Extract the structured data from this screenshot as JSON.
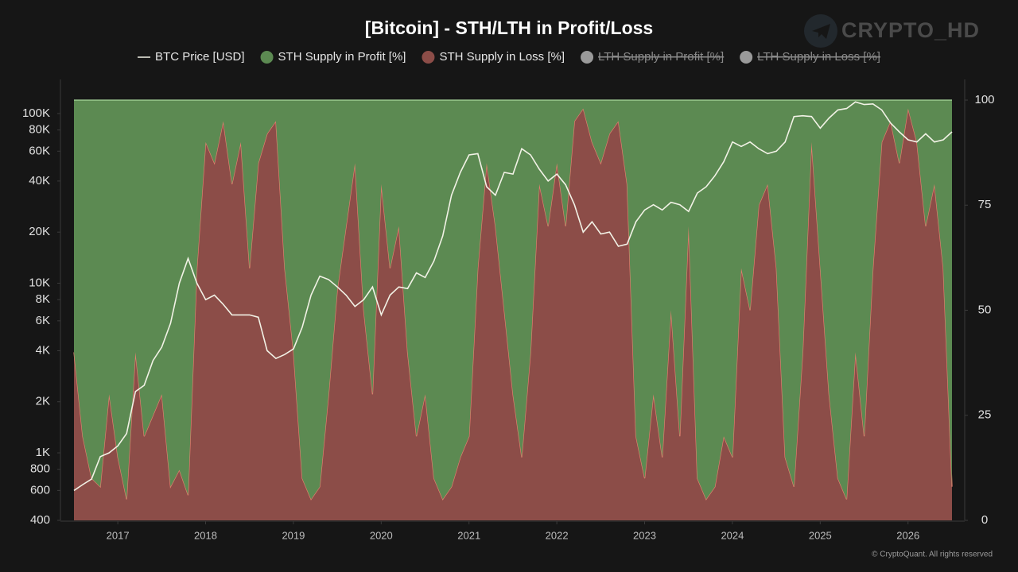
{
  "chart_data": {
    "type": "combo",
    "title": "[Bitcoin] - STH/LTH in Profit/Loss",
    "watermark": "CRYPTO_HD",
    "credit": "© CryptoQuant. All rights reserved",
    "x": [
      2016.7,
      2016.8,
      2016.9,
      2017.0,
      2017.1,
      2017.2,
      2017.3,
      2017.4,
      2017.5,
      2017.6,
      2017.7,
      2017.8,
      2017.9,
      2018.0,
      2018.1,
      2018.2,
      2018.3,
      2018.4,
      2018.5,
      2018.6,
      2018.7,
      2018.8,
      2018.9,
      2019.0,
      2019.1,
      2019.2,
      2019.3,
      2019.4,
      2019.5,
      2019.6,
      2019.7,
      2019.8,
      2019.9,
      2020.0,
      2020.1,
      2020.2,
      2020.3,
      2020.4,
      2020.5,
      2020.6,
      2020.7,
      2020.8,
      2020.9,
      2021.0,
      2021.1,
      2021.2,
      2021.3,
      2021.4,
      2021.5,
      2021.6,
      2021.7,
      2021.8,
      2021.9,
      2022.0,
      2022.1,
      2022.2,
      2022.3,
      2022.4,
      2022.5,
      2022.6,
      2022.7,
      2022.8,
      2022.9,
      2023.0,
      2023.1,
      2023.2,
      2023.3,
      2023.4,
      2023.5,
      2023.6,
      2023.7,
      2023.8,
      2023.9,
      2024.0,
      2024.1,
      2024.2,
      2024.3,
      2024.4,
      2024.5,
      2024.6,
      2024.7,
      2024.8,
      2024.9,
      2025.0,
      2025.1,
      2025.2,
      2025.3,
      2025.4,
      2025.5,
      2025.6,
      2025.7,
      2025.8,
      2025.9,
      2026.0,
      2026.1,
      2026.2,
      2026.3,
      2026.4,
      2026.5,
      2026.6,
      2026.7
    ],
    "xlim": [
      2016.7,
      2026.7
    ],
    "xticks": [
      2017,
      2018,
      2019,
      2020,
      2021,
      2022,
      2023,
      2024,
      2025,
      2026
    ],
    "ylim": [
      400,
      120000
    ],
    "yscale": "log",
    "yticks": [
      400,
      600,
      800,
      {
        "value": 1000,
        "label": "1K"
      },
      {
        "value": 2000,
        "label": "2K"
      },
      {
        "value": 4000,
        "label": "4K"
      },
      {
        "value": 6000,
        "label": "6K"
      },
      {
        "value": 8000,
        "label": "8K"
      },
      {
        "value": 10000,
        "label": "10K"
      },
      {
        "value": 20000,
        "label": "20K"
      },
      {
        "value": 40000,
        "label": "40K"
      },
      {
        "value": 60000,
        "label": "60K"
      },
      {
        "value": 80000,
        "label": "80K"
      },
      {
        "value": 100000,
        "label": "100K"
      }
    ],
    "y2lim": [
      0,
      100
    ],
    "y2ticks": [
      0,
      25,
      50,
      75,
      100
    ],
    "stacked": true,
    "series": [
      {
        "name": "BTC Price [USD]",
        "type": "line",
        "color": "#f2f2e6",
        "values": [
          600,
          650,
          700,
          950,
          1000,
          1100,
          1300,
          2300,
          2500,
          3500,
          4200,
          5800,
          10000,
          14000,
          10000,
          8000,
          8500,
          7500,
          6500,
          6500,
          6500,
          6300,
          4000,
          3600,
          3800,
          4100,
          5500,
          8500,
          11000,
          10500,
          9500,
          8500,
          7300,
          8000,
          9500,
          6500,
          8500,
          9500,
          9300,
          11500,
          10800,
          13500,
          19000,
          33000,
          45000,
          57000,
          58000,
          37000,
          33000,
          45000,
          44000,
          62000,
          57000,
          47000,
          40000,
          44000,
          38000,
          29000,
          20000,
          23000,
          19500,
          20000,
          16500,
          17000,
          23000,
          27000,
          29000,
          27000,
          30000,
          29000,
          26500,
          34000,
          37000,
          43000,
          52000,
          68000,
          64000,
          68000,
          62000,
          58000,
          60000,
          68000,
          96000,
          97000,
          96000,
          82000,
          94000,
          105000,
          107000,
          117000,
          113000,
          114000,
          105000,
          88000,
          78000,
          70000,
          68000,
          76000,
          68000,
          70000,
          78000
        ]
      },
      {
        "name": "STH Supply in Profit [%]",
        "type": "area",
        "axis": "y2",
        "color": "#5c8a52",
        "line_color": "#a9d99d",
        "values": [
          60,
          80,
          90,
          92,
          70,
          85,
          95,
          60,
          80,
          75,
          70,
          92,
          88,
          94,
          40,
          10,
          15,
          5,
          20,
          10,
          40,
          15,
          8,
          5,
          40,
          60,
          90,
          95,
          92,
          70,
          45,
          30,
          15,
          50,
          70,
          20,
          40,
          30,
          60,
          80,
          70,
          90,
          95,
          92,
          85,
          80,
          40,
          15,
          30,
          50,
          70,
          85,
          60,
          20,
          30,
          15,
          30,
          5,
          2,
          10,
          15,
          8,
          5,
          20,
          80,
          90,
          70,
          85,
          50,
          80,
          30,
          90,
          95,
          92,
          80,
          85,
          40,
          50,
          25,
          20,
          40,
          85,
          92,
          60,
          10,
          40,
          70,
          90,
          95,
          60,
          80,
          40,
          10,
          5,
          15,
          2,
          10,
          30,
          20,
          40,
          92
        ]
      },
      {
        "name": "STH Supply in Loss [%]",
        "type": "area",
        "axis": "y2",
        "color": "#8c4d48",
        "line_color": "#e4806f",
        "values": [
          40,
          20,
          10,
          8,
          30,
          15,
          5,
          40,
          20,
          25,
          30,
          8,
          12,
          6,
          60,
          90,
          85,
          95,
          80,
          90,
          60,
          85,
          92,
          95,
          60,
          40,
          10,
          5,
          8,
          30,
          55,
          70,
          85,
          50,
          30,
          80,
          60,
          70,
          40,
          20,
          30,
          10,
          5,
          8,
          15,
          20,
          60,
          85,
          70,
          50,
          30,
          15,
          40,
          80,
          70,
          85,
          70,
          95,
          98,
          90,
          85,
          92,
          95,
          80,
          20,
          10,
          30,
          15,
          50,
          20,
          70,
          10,
          5,
          8,
          20,
          15,
          60,
          50,
          75,
          80,
          60,
          15,
          8,
          40,
          90,
          60,
          30,
          10,
          5,
          40,
          20,
          60,
          90,
          95,
          85,
          98,
          90,
          70,
          80,
          60,
          8
        ]
      }
    ],
    "hidden_series": [
      {
        "name": "LTH Supply in Profit [%]",
        "color": "#9a9a9a"
      },
      {
        "name": "LTH Supply in Loss [%]",
        "color": "#9a9a9a"
      }
    ]
  }
}
